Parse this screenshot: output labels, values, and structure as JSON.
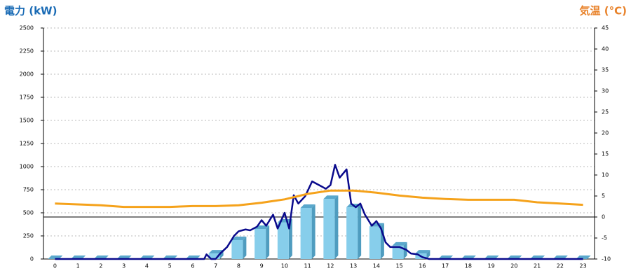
{
  "chart_data": {
    "type": "bar",
    "y_label": "電力 (kW)",
    "y_label_color": "#1a6bb5",
    "y2_label": "気温 (°C)",
    "y2_label_color": "#e8822a",
    "categories": [
      "0",
      "1",
      "2",
      "3",
      "4",
      "5",
      "6",
      "7",
      "8",
      "9",
      "10",
      "11",
      "12",
      "13",
      "14",
      "15",
      "16",
      "17",
      "18",
      "19",
      "20",
      "21",
      "22",
      "23"
    ],
    "ylim": [
      0,
      2500
    ],
    "yticks": [
      0,
      250,
      500,
      750,
      1000,
      1250,
      1500,
      1750,
      2000,
      2250,
      2500
    ],
    "y2lim": [
      -10,
      45
    ],
    "y2ticks": [
      -10,
      -5,
      0,
      5,
      10,
      15,
      20,
      25,
      30,
      35,
      40,
      45
    ],
    "grid": true,
    "series": [
      {
        "type": "bar",
        "color": "#87ceeb",
        "values": [
          0,
          0,
          0,
          0,
          0,
          0,
          0,
          60,
          205,
          325,
          395,
          553,
          650,
          560,
          350,
          145,
          60,
          0,
          0,
          0,
          0,
          0,
          0,
          0
        ]
      },
      {
        "type": "line",
        "color": "#0a0a8c",
        "x": [
          0,
          1,
          2,
          3,
          4,
          5,
          6,
          6.5,
          6.6,
          6.8,
          7,
          7.2,
          7.5,
          7.8,
          8,
          8.3,
          8.5,
          8.8,
          9,
          9.2,
          9.5,
          9.7,
          10,
          10.2,
          10.4,
          10.6,
          10.9,
          11.2,
          11.5,
          11.8,
          12,
          12.2,
          12.4,
          12.7,
          12.9,
          13.1,
          13.3,
          13.5,
          13.8,
          14,
          14.2,
          14.4,
          14.6,
          15,
          15.3,
          15.5,
          15.8,
          16,
          16.3,
          17,
          18,
          19,
          20,
          21,
          22,
          23
        ],
        "values": [
          0,
          0,
          0,
          0,
          0,
          0,
          0,
          0,
          50,
          0,
          0,
          60,
          130,
          250,
          300,
          320,
          310,
          350,
          420,
          360,
          480,
          330,
          500,
          330,
          690,
          600,
          680,
          840,
          800,
          760,
          800,
          1020,
          880,
          970,
          600,
          560,
          600,
          480,
          360,
          410,
          330,
          180,
          130,
          130,
          100,
          60,
          50,
          20,
          0,
          0,
          0,
          0,
          0,
          0,
          0,
          0
        ]
      },
      {
        "type": "line",
        "axis": "y2",
        "color": "#f5a21b",
        "values": [
          3.2,
          3.0,
          2.8,
          2.4,
          2.4,
          2.4,
          2.6,
          2.6,
          2.8,
          3.4,
          4.2,
          5.5,
          6.3,
          6.3,
          5.8,
          5.1,
          4.6,
          4.3,
          4.1,
          4.1,
          4.1,
          3.5,
          3.2,
          2.9
        ]
      }
    ]
  }
}
